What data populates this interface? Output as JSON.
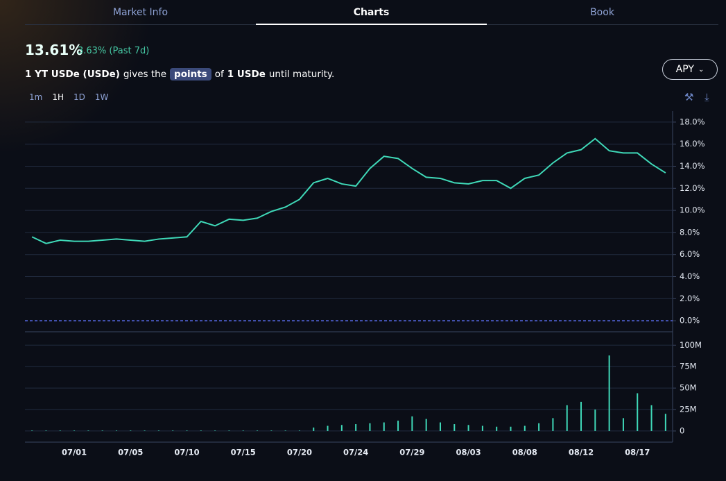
{
  "ui": {
    "tabs": [
      "Market Info",
      "Charts",
      "Book"
    ],
    "apy": "13.61%",
    "change": "3.63% (Past 7d)",
    "sentence": [
      "1 YT USDe (USDe)",
      "gives the",
      "points",
      "of",
      "1 USDe",
      "until maturity."
    ],
    "metric": "APY",
    "timeframes": [
      "1m",
      "1H",
      "1D",
      "1W"
    ]
  },
  "chart_data": [
    {
      "type": "line",
      "categories": [
        null,
        null,
        null,
        "07/01",
        null,
        null,
        null,
        "07/05",
        null,
        null,
        null,
        "07/10",
        null,
        null,
        null,
        "07/15",
        null,
        null,
        null,
        "07/20",
        null,
        null,
        null,
        "07/24",
        null,
        null,
        null,
        "07/29",
        null,
        null,
        null,
        "08/03",
        null,
        null,
        null,
        "08/08",
        null,
        null,
        null,
        "08/12",
        null,
        null,
        null,
        "08/17",
        null,
        null
      ],
      "series": [
        {
          "name": "APY",
          "color": "#3fd9b8",
          "values": [
            7.6,
            7.0,
            7.3,
            7.2,
            7.2,
            7.3,
            7.4,
            7.3,
            7.2,
            7.4,
            7.5,
            7.6,
            9.0,
            8.6,
            9.2,
            9.1,
            9.3,
            9.9,
            10.3,
            11.0,
            12.5,
            12.9,
            12.4,
            12.2,
            13.8,
            14.9,
            14.7,
            13.8,
            13.0,
            12.9,
            12.5,
            12.4,
            12.7,
            12.7,
            12.0,
            12.9,
            13.2,
            14.3,
            15.2,
            15.5,
            16.5,
            15.4,
            15.2,
            15.2,
            14.2,
            13.4
          ]
        }
      ],
      "ylim": [
        -1,
        19
      ],
      "yticks": [
        {
          "value": 0,
          "label": "0.0%"
        },
        {
          "value": 2,
          "label": "2.0%"
        },
        {
          "value": 4,
          "label": "4.0%"
        },
        {
          "value": 6,
          "label": "6.0%"
        },
        {
          "value": 8,
          "label": "8.0%"
        },
        {
          "value": 10,
          "label": "10.0%"
        },
        {
          "value": 12,
          "label": "12.0%"
        },
        {
          "value": 14,
          "label": "14.0%"
        },
        {
          "value": 16,
          "label": "16.0%"
        },
        {
          "value": 18,
          "label": "18.0%"
        }
      ],
      "grid": true
    },
    {
      "type": "bar",
      "series": [
        {
          "name": "Volume",
          "color": "#3fd9b8",
          "values": [
            0.5,
            0.5,
            0.5,
            0.5,
            0.5,
            0.5,
            0.5,
            0.5,
            0.5,
            0.5,
            0.5,
            0.5,
            0.5,
            0.5,
            0.5,
            0.5,
            0.5,
            0.5,
            0.5,
            0.5,
            4,
            6,
            7,
            8,
            9,
            10,
            12,
            17,
            14,
            10,
            8,
            7,
            6,
            5,
            5,
            6,
            9,
            15,
            30,
            34,
            25,
            88,
            15,
            44,
            30,
            20
          ]
        }
      ],
      "ylim": [
        -13,
        114
      ],
      "yticks": [
        0,
        {
          "value": 25,
          "label": "25M"
        },
        {
          "value": 50,
          "label": "50M"
        },
        {
          "value": 75,
          "label": "75M"
        },
        {
          "value": 100,
          "label": "100M"
        }
      ],
      "grid": true
    }
  ]
}
